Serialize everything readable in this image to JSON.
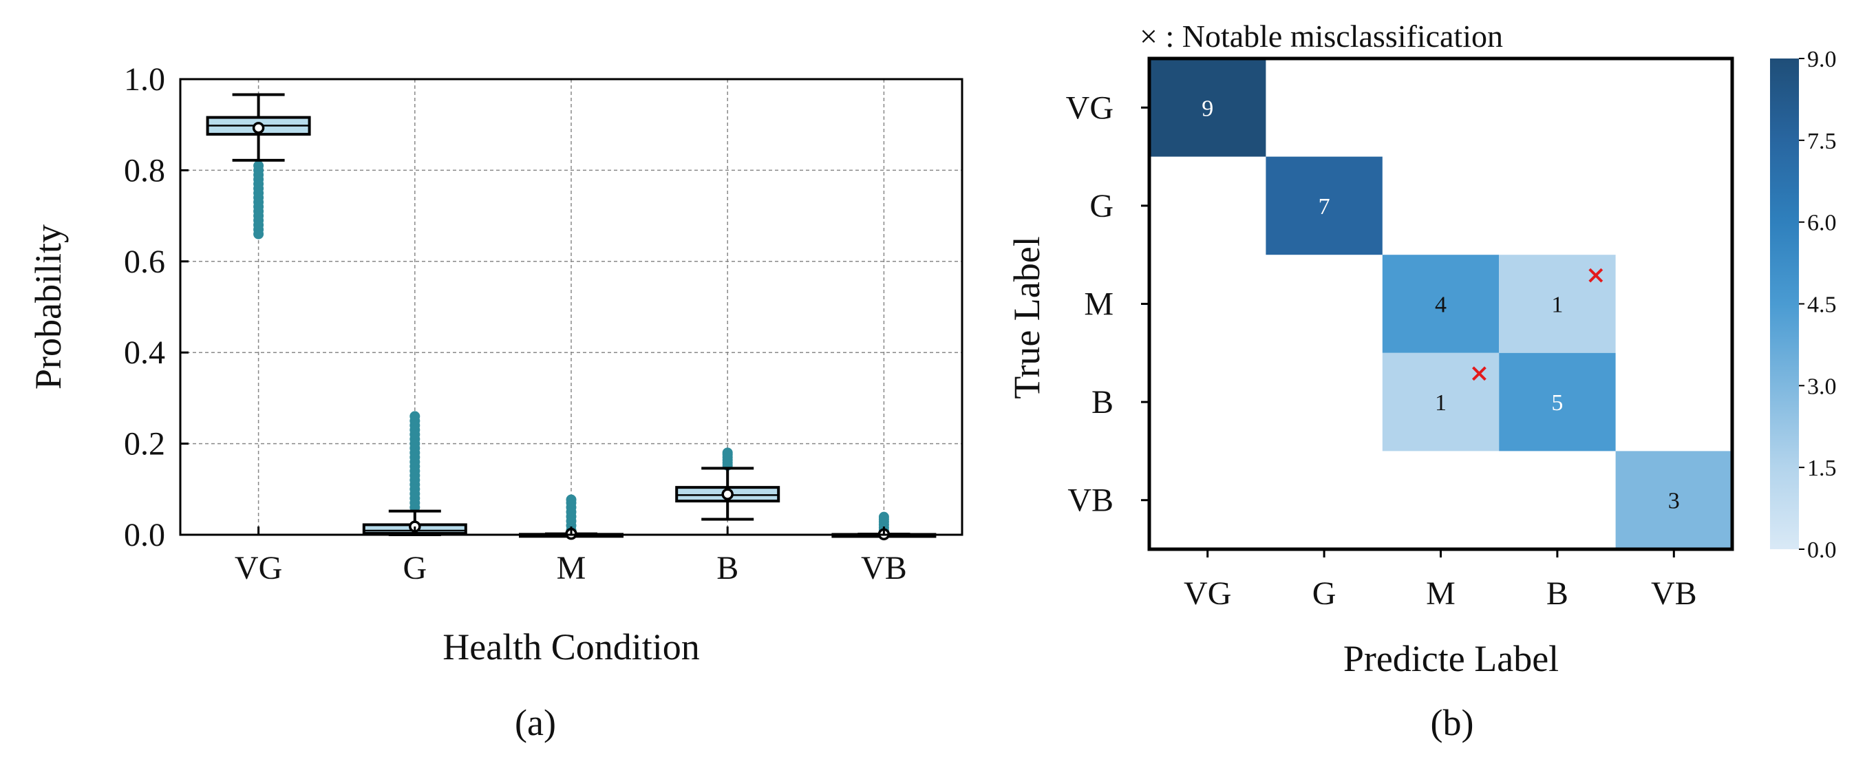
{
  "chart_data": [
    {
      "type": "box",
      "panel_label": "(a)",
      "xlabel": "Health Condition",
      "ylabel": "Probability",
      "categories": [
        "VG",
        "G",
        "M",
        "B",
        "VB"
      ],
      "ylim": [
        0.0,
        1.0
      ],
      "yticks": [
        "0.0",
        "0.2",
        "0.4",
        "0.6",
        "0.8",
        "1.0"
      ],
      "grid": true,
      "box_fill": "#b7dcec",
      "flier_color": "#2e8b9b",
      "boxes": [
        {
          "category": "VG",
          "q1": 0.879,
          "median": 0.898,
          "q3": 0.916,
          "whisker_low": 0.822,
          "whisker_high": 0.966,
          "mean": 0.893,
          "fliers": [
            0.81,
            0.8,
            0.79,
            0.78,
            0.77,
            0.76,
            0.75,
            0.74,
            0.73,
            0.72,
            0.71,
            0.7,
            0.69,
            0.68,
            0.67,
            0.66
          ]
        },
        {
          "category": "G",
          "q1": 0.003,
          "median": 0.009,
          "q3": 0.022,
          "whisker_low": 0.0,
          "whisker_high": 0.052,
          "mean": 0.018,
          "fliers": [
            0.06,
            0.07,
            0.08,
            0.09,
            0.1,
            0.11,
            0.12,
            0.13,
            0.14,
            0.15,
            0.16,
            0.17,
            0.18,
            0.19,
            0.2,
            0.21,
            0.22,
            0.23,
            0.24,
            0.25,
            0.26
          ]
        },
        {
          "category": "M",
          "q1": 0.0,
          "median": 0.0005,
          "q3": 0.001,
          "whisker_low": 0.0,
          "whisker_high": 0.002,
          "mean": 0.002,
          "fliers": [
            0.005,
            0.01,
            0.02,
            0.03,
            0.04,
            0.05,
            0.06,
            0.07,
            0.077
          ]
        },
        {
          "category": "B",
          "q1": 0.074,
          "median": 0.087,
          "q3": 0.104,
          "whisker_low": 0.034,
          "whisker_high": 0.146,
          "mean": 0.089,
          "fliers": [
            0.152,
            0.158,
            0.164,
            0.17,
            0.176,
            0.18
          ]
        },
        {
          "category": "VB",
          "q1": 0.0,
          "median": 0.0003,
          "q3": 0.0008,
          "whisker_low": 0.0,
          "whisker_high": 0.0015,
          "mean": 0.001,
          "fliers": [
            0.004,
            0.01,
            0.016,
            0.022,
            0.028,
            0.034,
            0.039
          ]
        }
      ]
    },
    {
      "type": "heatmap",
      "panel_label": "(b)",
      "legend_text": "× : Notable misclassification",
      "xlabel": "Predicte Label",
      "ylabel": "True Label",
      "x_categories": [
        "VG",
        "G",
        "M",
        "B",
        "VB"
      ],
      "y_categories": [
        "VG",
        "G",
        "M",
        "B",
        "VB"
      ],
      "matrix": [
        [
          9,
          0,
          0,
          0,
          0
        ],
        [
          0,
          7,
          0,
          0,
          0
        ],
        [
          0,
          0,
          4,
          1,
          0
        ],
        [
          0,
          0,
          1,
          5,
          0
        ],
        [
          0,
          0,
          0,
          0,
          3
        ]
      ],
      "misclassified": [
        [
          2,
          3
        ],
        [
          3,
          2
        ]
      ],
      "marker_color": "#e31a1c",
      "colorbar": {
        "min": 0.0,
        "max": 9.0,
        "ticks": [
          "0.0",
          "1.5",
          "3.0",
          "4.5",
          "6.0",
          "7.5",
          "9.0"
        ]
      },
      "colormap": [
        "#d9e9f6",
        "#b3d4ec",
        "#7fb8df",
        "#4a9bd2",
        "#2f80bd",
        "#2866a0",
        "#1f4e78"
      ]
    }
  ]
}
